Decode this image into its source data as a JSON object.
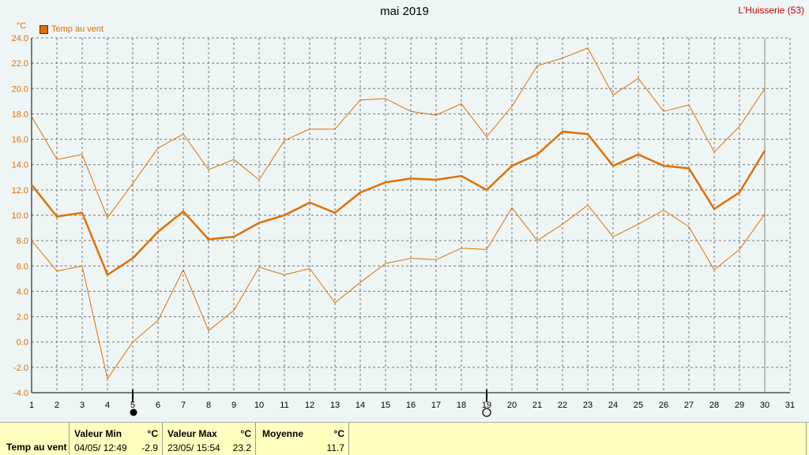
{
  "header": {
    "title": "mai 2019",
    "station": "L'Huisserie (53)"
  },
  "legend": {
    "label": "Temp au vent",
    "color": "#e07000"
  },
  "unit": "°C",
  "stats": {
    "row_label": "Temp au vent",
    "min": {
      "label": "Valeur Min",
      "unit": "°C",
      "date": "04/05/  12:49",
      "value": "-2.9"
    },
    "max": {
      "label": "Valeur Max",
      "unit": "°C",
      "date": "23/05/  15:54",
      "value": "23.2"
    },
    "avg": {
      "label": "Moyenne",
      "unit": "°C",
      "value": "11.7"
    }
  },
  "chart_data": {
    "type": "line",
    "title": "mai 2019",
    "x": [
      1,
      2,
      3,
      4,
      5,
      6,
      7,
      8,
      9,
      10,
      11,
      12,
      13,
      14,
      15,
      16,
      17,
      18,
      19,
      20,
      21,
      22,
      23,
      24,
      25,
      26,
      27,
      28,
      29,
      30
    ],
    "xticks": [
      1,
      2,
      3,
      4,
      5,
      6,
      7,
      8,
      9,
      10,
      11,
      12,
      13,
      14,
      15,
      16,
      17,
      18,
      19,
      20,
      21,
      22,
      23,
      24,
      25,
      26,
      27,
      28,
      29,
      30,
      31
    ],
    "xlim": [
      1,
      31
    ],
    "ylim": [
      -4,
      24
    ],
    "yticks": [
      "-4.0",
      "-2.0",
      "0.0",
      "2.0",
      "4.0",
      "6.0",
      "8.0",
      "10.0",
      "12.0",
      "14.0",
      "16.0",
      "18.0",
      "20.0",
      "22.0",
      "24.0"
    ],
    "ylabel": "°C",
    "grid": true,
    "legend_position": "top-left",
    "series": [
      {
        "name": "Temp au vent",
        "role": "mean",
        "color": "#e07000",
        "values": [
          12.4,
          9.9,
          10.2,
          5.3,
          6.6,
          8.7,
          10.3,
          8.1,
          8.3,
          9.4,
          10.0,
          11.0,
          10.2,
          11.8,
          12.6,
          12.9,
          12.8,
          13.1,
          12.0,
          13.9,
          14.8,
          16.6,
          16.4,
          13.9,
          14.8,
          13.9,
          13.7,
          10.5,
          11.8,
          15.1
        ]
      },
      {
        "role": "max",
        "color": "#e07000",
        "values": [
          17.8,
          14.4,
          14.8,
          9.8,
          12.5,
          15.3,
          16.4,
          13.6,
          14.4,
          12.8,
          15.9,
          16.8,
          16.8,
          19.1,
          19.2,
          18.2,
          17.9,
          18.8,
          16.2,
          18.6,
          21.8,
          22.4,
          23.2,
          19.5,
          20.8,
          18.2,
          18.7,
          15.0,
          17.0,
          20.0
        ]
      },
      {
        "role": "min",
        "color": "#e07000",
        "values": [
          8.0,
          5.6,
          6.0,
          -2.9,
          0.0,
          1.7,
          5.7,
          0.9,
          2.5,
          5.9,
          5.3,
          5.8,
          3.1,
          4.7,
          6.2,
          6.6,
          6.5,
          7.4,
          7.3,
          10.6,
          8.0,
          9.3,
          10.8,
          8.3,
          9.3,
          10.4,
          9.1,
          5.7,
          7.3,
          10.1
        ]
      }
    ],
    "moon_phases": [
      {
        "day": 5,
        "phase": "new"
      },
      {
        "day": 19,
        "phase": "full"
      }
    ],
    "current_day_marker": 30
  }
}
